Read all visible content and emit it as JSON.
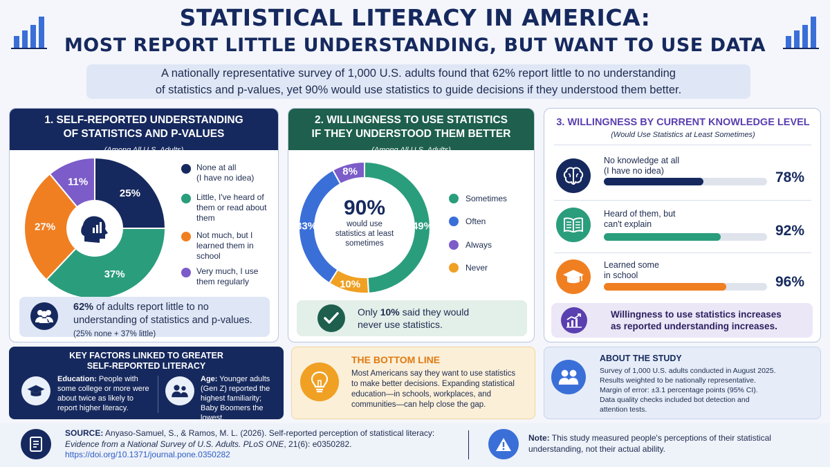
{
  "header": {
    "title_line1": "STATISTICAL LITERACY IN AMERICA:",
    "title_line2": "MOST REPORT LITTLE UNDERSTANDING, BUT WANT TO USE DATA",
    "summary_line1": "A nationally representative survey of 1,000 U.S. adults found that 62% report little to no understanding",
    "summary_line2": "of statistics and p-values, yet 90% would use statistics to guide decisions if they understood them better."
  },
  "colors": {
    "navy": "#16295e",
    "teal": "#2a9d7c",
    "orange": "#f07f22",
    "purple": "#7b5cc9",
    "blue": "#3a6fd8",
    "amber": "#f0a023",
    "green_header": "#1e5f4d"
  },
  "panel1": {
    "title_line1": "1. SELF-REPORTED UNDERSTANDING",
    "title_line2": "OF STATISTICS AND P-VALUES",
    "subtitle": "(Among All U.S. Adults)",
    "legend": [
      {
        "line1": "None at all",
        "line2": "(I have no idea)",
        "line3": ""
      },
      {
        "line1": "Little, I've heard of",
        "line2": "them or read about",
        "line3": "them"
      },
      {
        "line1": "Not much, but I",
        "line2": "learned them in",
        "line3": "school"
      },
      {
        "line1": "Very much, I use",
        "line2": "them regularly",
        "line3": ""
      }
    ],
    "callout_bold": "62%",
    "callout_text1": " of adults report little to no",
    "callout_text2": "understanding of statistics and p-values.",
    "callout_note": "(25% none + 37% little)",
    "center_icon": "head-chart-icon",
    "callout_icon": "people-icon"
  },
  "panel2": {
    "title_line1": "2. WILLINGNESS TO USE STATISTICS",
    "title_line2": "IF THEY UNDERSTOOD THEM BETTER",
    "subtitle": "(Among All U.S. Adults)",
    "center_big": "90%",
    "center_line1": "would use",
    "center_line2": "statistics at least",
    "center_line3": "sometimes",
    "legend": [
      "Sometimes",
      "Often",
      "Always",
      "Never"
    ],
    "callout_text1": "Only ",
    "callout_bold": "10%",
    "callout_text2": " said they would",
    "callout_text3": "never use statistics.",
    "callout_icon": "check-icon"
  },
  "panel3": {
    "title": "3. WILLINGNESS BY CURRENT KNOWLEDGE LEVEL",
    "subtitle": "(Would Use Statistics at Least Sometimes)",
    "rows": [
      {
        "line1": "No knowledge at all",
        "line2": "(I have no idea)",
        "value": 78,
        "label": "78%",
        "icon": "brain-icon"
      },
      {
        "line1": "Heard of them, but",
        "line2": "can't explain",
        "value": 92,
        "label": "92%",
        "icon": "book-icon"
      },
      {
        "line1": "Learned some",
        "line2": "in school",
        "value": 96,
        "label": "96%",
        "icon": "graduation-cap-icon"
      }
    ],
    "callout_line1": "Willingness to use statistics increases",
    "callout_line2": "as reported understanding increases.",
    "callout_icon": "trend-chart-icon"
  },
  "factors": {
    "title_line1": "KEY FACTORS LINKED TO GREATER",
    "title_line2": "SELF-REPORTED LITERACY",
    "education_bold": "Education:",
    "education_l1": " People with",
    "education_l2": "some college or more were",
    "education_l3": "about twice as likely to",
    "education_l4": "report higher literacy.",
    "age_bold": "Age:",
    "age_l1": " Younger adults",
    "age_l2": "(Gen Z) reported the",
    "age_l3": "highest familiarity;",
    "age_l4": "Baby Boomers the lowest."
  },
  "bottom_line": {
    "title": "THE BOTTOM LINE",
    "l1": "Most Americans say they want to use statistics",
    "l2": "to make better decisions. Expanding statistical",
    "l3": "education—in schools, workplaces, and",
    "l4": "communities—can help close the gap."
  },
  "about": {
    "title": "ABOUT THE STUDY",
    "l1": "Survey of 1,000 U.S. adults conducted in August 2025.",
    "l2": "Results weighted to be nationally representative.",
    "l3": "Margin of error: ±3.1 percentage points (95% CI).",
    "l4": "Data quality checks included bot detection and",
    "l5": "attention tests."
  },
  "footer": {
    "source_label": "SOURCE:",
    "source_l1": " Anyaso-Samuel, S., & Ramos, M. L. (2026). Self-reported perception of statistical literacy:",
    "source_italic": "Evidence from a National Survey of U.S. Adults. PLoS ONE",
    "source_rest": ", 21(6): e0350282.",
    "doi": "https://doi.org/10.1371/journal.pone.0350282",
    "note_label": "Note:",
    "note_l1": " This study measured people's perceptions of their statistical",
    "note_l2": "understanding, not their actual ability."
  },
  "chart_data": [
    {
      "type": "pie",
      "title": "1. SELF-REPORTED UNDERSTANDING OF STATISTICS AND P-VALUES",
      "categories": [
        "None at all (I have no idea)",
        "Little, I've heard of them or read about them",
        "Not much, but I learned them in school",
        "Very much, I use them regularly"
      ],
      "values": [
        25,
        37,
        27,
        11
      ],
      "labels": [
        "25%",
        "37%",
        "27%",
        "11%"
      ],
      "colors": [
        "#16295e",
        "#2a9d7c",
        "#f07f22",
        "#7b5cc9"
      ]
    },
    {
      "type": "pie",
      "title": "2. WILLINGNESS TO USE STATISTICS IF THEY UNDERSTOOD THEM BETTER",
      "categories": [
        "Sometimes",
        "Never",
        "Often",
        "Always"
      ],
      "values": [
        49,
        10,
        33,
        8
      ],
      "labels": [
        "49%",
        "10%",
        "33%",
        "8%"
      ],
      "colors": [
        "#2a9d7c",
        "#f0a023",
        "#3a6fd8",
        "#7b5cc9"
      ]
    },
    {
      "type": "bar",
      "title": "3. WILLINGNESS BY CURRENT KNOWLEDGE LEVEL",
      "categories": [
        "No knowledge at all (I have no idea)",
        "Heard of them, but can't explain",
        "Learned some in school"
      ],
      "values": [
        78,
        92,
        96
      ],
      "xlim": [
        0,
        100
      ]
    }
  ]
}
